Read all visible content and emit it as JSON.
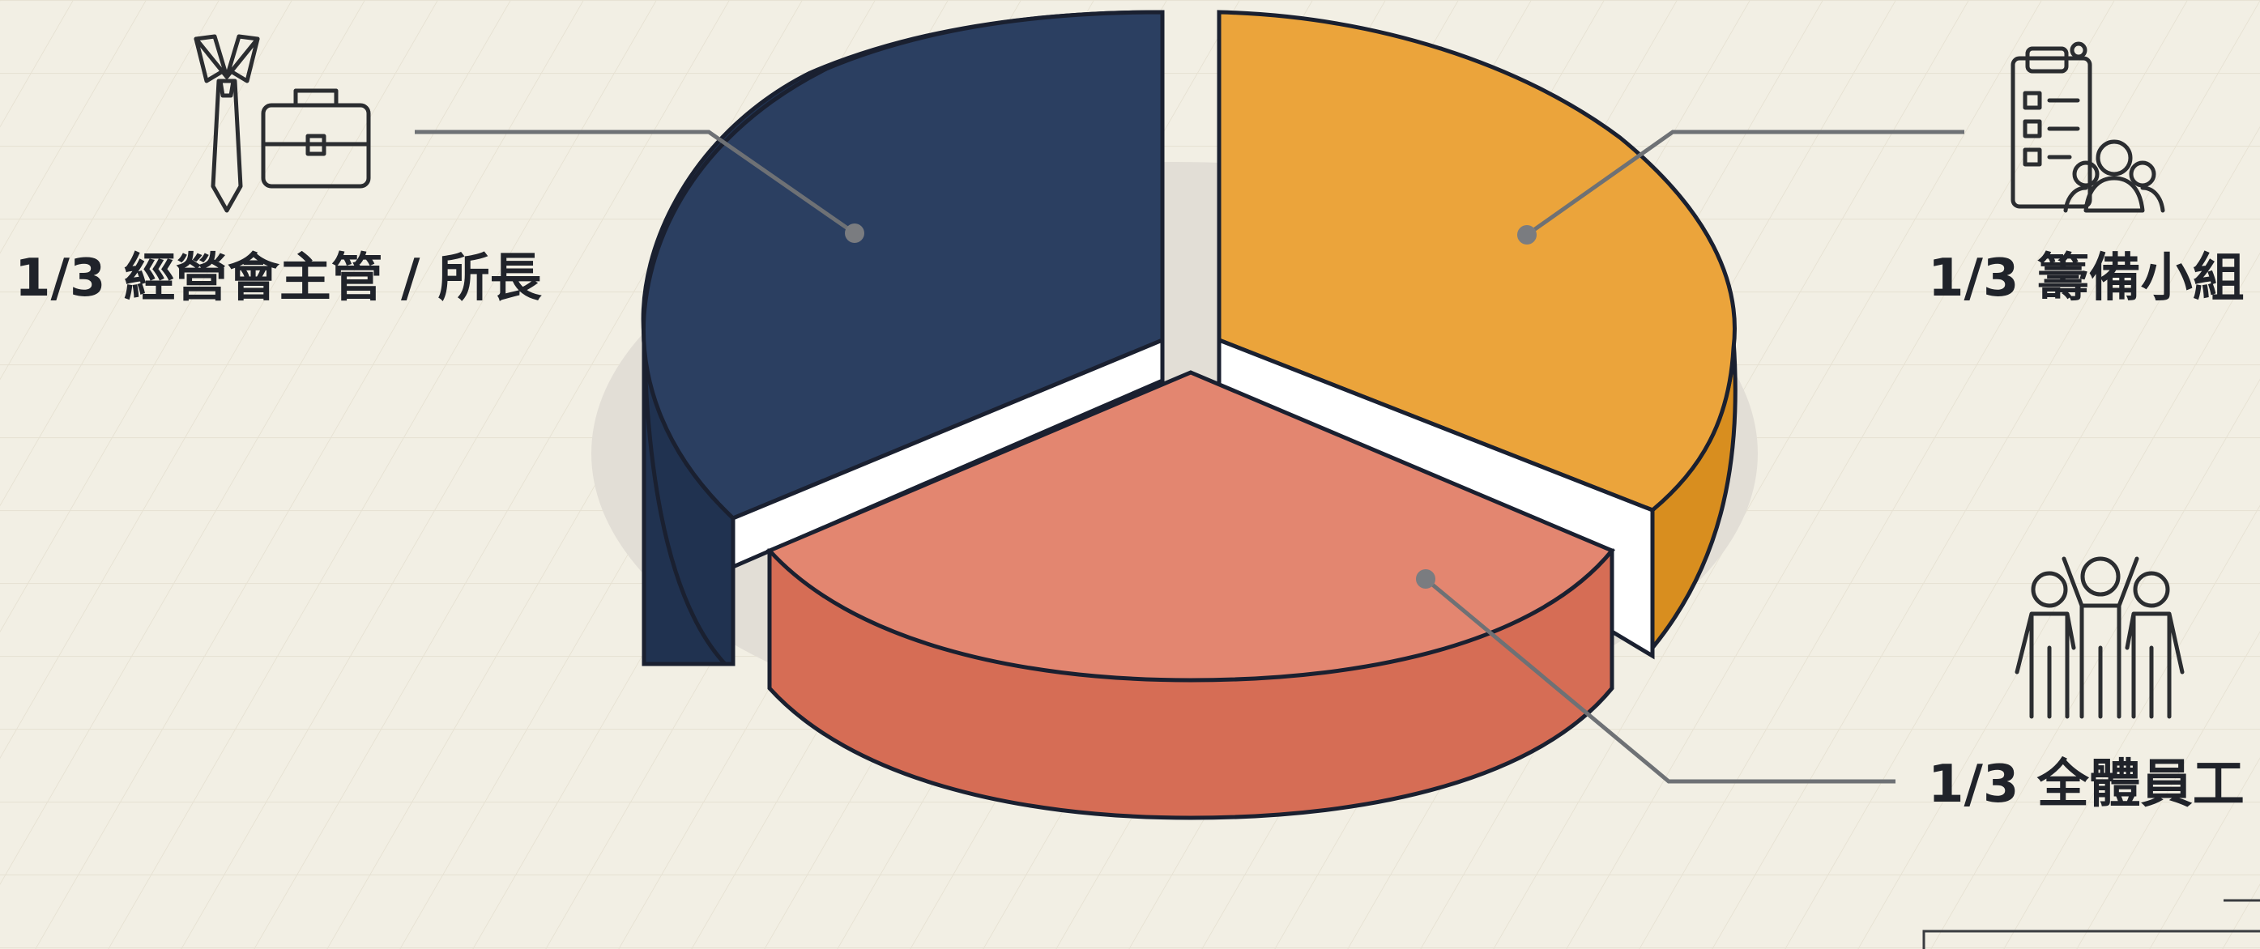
{
  "chart_data": {
    "type": "pie",
    "title": "",
    "slices": [
      {
        "label": "1/3 經營會主管 / 所長",
        "value": 1,
        "color": "#2b3f61",
        "side_color": "#203250",
        "icon": "tie-briefcase-icon"
      },
      {
        "label": "1/3 籌備小組",
        "value": 1,
        "color": "#eba43b",
        "side_color": "#d88e1f",
        "icon": "clipboard-team-icon"
      },
      {
        "label": "1/3 全體員工",
        "value": 1,
        "color": "#e38670",
        "side_color": "#d66d55",
        "icon": "group-people-icon"
      }
    ]
  }
}
